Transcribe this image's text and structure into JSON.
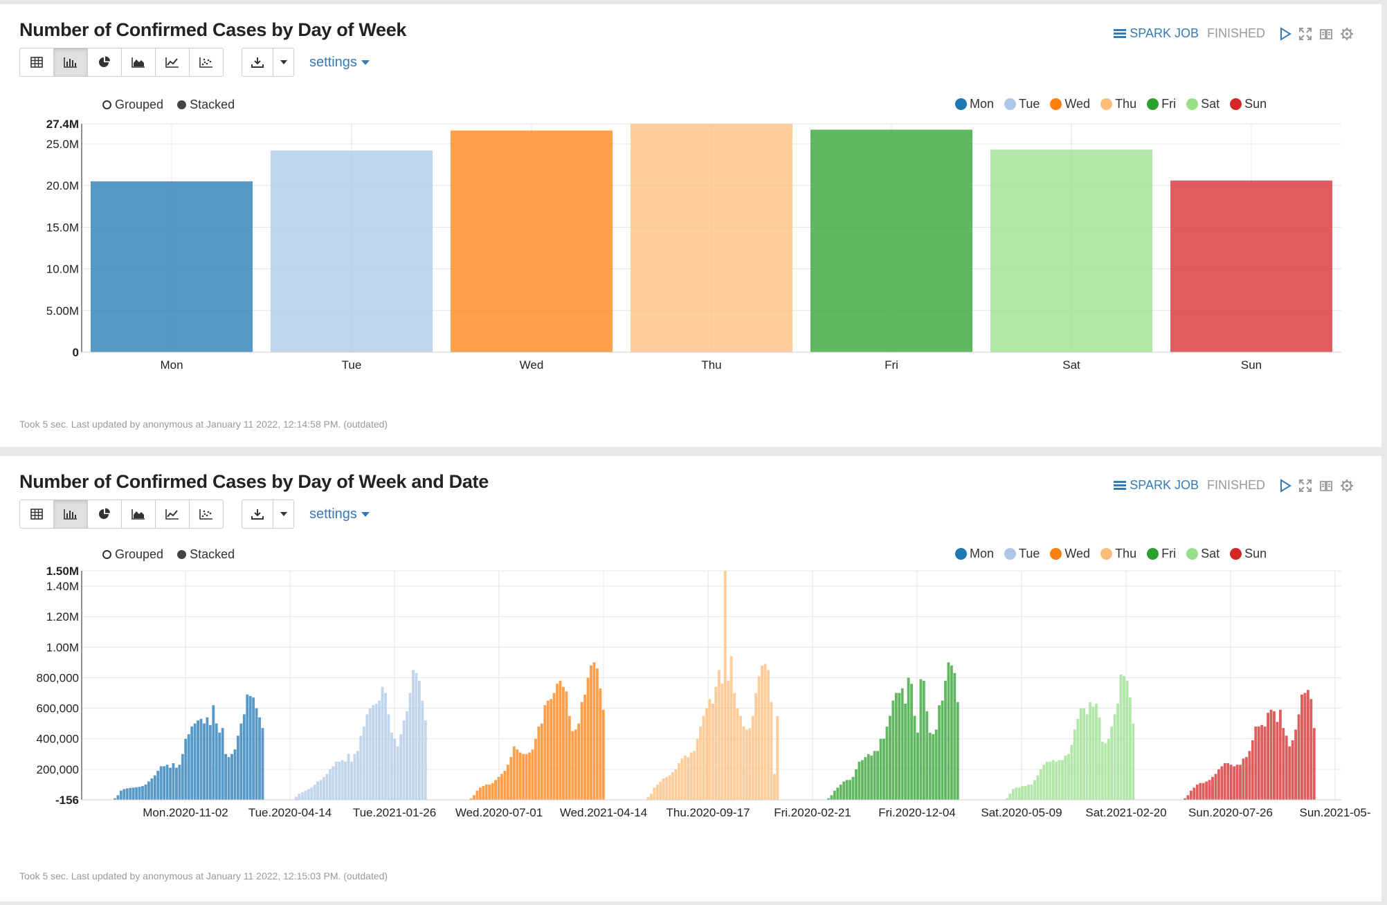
{
  "colors": {
    "Mon": "#1f77b4",
    "Tue": "#aec7e8",
    "Wed": "#ff7f0e",
    "Thu": "#ffbb78",
    "Fri": "#2ca02c",
    "Sat": "#98df8a",
    "Sun": "#d62728"
  },
  "toolbar": {
    "buttons": [
      "table-icon",
      "bar-chart-icon",
      "pie-chart-icon",
      "area-chart-icon",
      "line-chart-icon",
      "scatter-chart-icon"
    ],
    "settings_label": "settings"
  },
  "status": {
    "job_label": "SPARK JOB",
    "state": "FINISHED"
  },
  "mode": {
    "grouped": "Grouped",
    "stacked": "Stacked"
  },
  "legend": [
    "Mon",
    "Tue",
    "Wed",
    "Thu",
    "Fri",
    "Sat",
    "Sun"
  ],
  "paragraphs": [
    {
      "title": "Number of Confirmed Cases by Day of Week",
      "footer": "Took 5 sec. Last updated by anonymous at January 11 2022, 12:14:58 PM. (outdated)"
    },
    {
      "title": "Number of Confirmed Cases by Day of Week and Date",
      "footer": "Took 5 sec. Last updated by anonymous at January 11 2022, 12:15:03 PM. (outdated)"
    }
  ],
  "chart_data": [
    {
      "type": "bar",
      "title": "Number of Confirmed Cases by Day of Week",
      "categories": [
        "Mon",
        "Tue",
        "Wed",
        "Thu",
        "Fri",
        "Sat",
        "Sun"
      ],
      "values": [
        20500000,
        24200000,
        26600000,
        27400000,
        26700000,
        24300000,
        20600000
      ],
      "ylim": [
        0,
        27400000
      ],
      "yticks": [
        "0",
        "5.00M",
        "10.0M",
        "15.0M",
        "20.0M",
        "25.0M",
        "27.4M"
      ],
      "ytick_values": [
        0,
        5000000,
        10000000,
        15000000,
        20000000,
        25000000,
        27400000
      ],
      "grid": true,
      "legend_position": "top-right"
    },
    {
      "type": "bar",
      "title": "Number of Confirmed Cases by Day of Week and Date",
      "ylim": [
        -156,
        1500000
      ],
      "yticks": [
        "-156",
        "200,000",
        "400,000",
        "600,000",
        "800,000",
        "1.00M",
        "1.20M",
        "1.40M",
        "1.50M"
      ],
      "ytick_values": [
        -156,
        200000,
        400000,
        600000,
        800000,
        1000000,
        1200000,
        1400000,
        1500000
      ],
      "xtick_labels": [
        "Mon.2020-11-02",
        "Tue.2020-04-14",
        "Tue.2021-01-26",
        "Wed.2020-07-01",
        "Wed.2021-04-14",
        "Thu.2020-09-17",
        "Fri.2020-02-21",
        "Fri.2020-12-04",
        "Sat.2020-05-09",
        "Sat.2021-02-20",
        "Sun.2020-07-26",
        "Sun.2021-05-"
      ],
      "grid": true,
      "legend_position": "top-right",
      "series": [
        {
          "name": "Mon",
          "values": [
            0,
            0,
            0,
            0,
            0,
            0,
            0,
            0,
            0,
            10,
            30,
            60,
            70,
            75,
            78,
            80,
            82,
            85,
            90,
            100,
            120,
            140,
            160,
            190,
            220,
            220,
            230,
            210,
            240,
            210,
            230,
            300,
            400,
            430,
            480,
            500,
            520,
            530,
            500,
            540,
            490,
            620,
            500,
            440,
            470,
            300,
            280,
            300,
            330,
            420,
            500,
            560,
            690,
            680,
            670,
            600,
            540,
            470
          ]
        },
        {
          "name": "Tue",
          "values": [
            0,
            0,
            0,
            0,
            0,
            0,
            0,
            0,
            0,
            20,
            40,
            50,
            60,
            70,
            80,
            100,
            120,
            130,
            150,
            170,
            200,
            220,
            250,
            250,
            260,
            250,
            300,
            250,
            300,
            320,
            420,
            480,
            560,
            600,
            620,
            630,
            650,
            740,
            700,
            560,
            440,
            400,
            350,
            430,
            520,
            580,
            700,
            850,
            830,
            780,
            650,
            520
          ]
        },
        {
          "name": "Wed",
          "values": [
            0,
            0,
            0,
            0,
            0,
            0,
            0,
            0,
            10,
            30,
            60,
            80,
            90,
            100,
            100,
            110,
            130,
            150,
            170,
            190,
            230,
            280,
            350,
            330,
            310,
            300,
            300,
            310,
            330,
            400,
            480,
            500,
            620,
            650,
            660,
            700,
            760,
            780,
            740,
            710,
            550,
            450,
            460,
            500,
            640,
            690,
            800,
            880,
            900,
            860,
            730,
            590
          ]
        },
        {
          "name": "Thu",
          "values": [
            0,
            0,
            0,
            0,
            0,
            0,
            0,
            0,
            20,
            40,
            80,
            100,
            120,
            140,
            150,
            160,
            180,
            200,
            240,
            270,
            290,
            280,
            310,
            320,
            400,
            480,
            550,
            600,
            660,
            630,
            740,
            850,
            760,
            1500,
            780,
            940,
            700,
            600,
            550,
            480,
            460,
            470,
            550,
            700,
            810,
            880,
            890,
            850,
            640,
            170,
            550
          ]
        },
        {
          "name": "Fri",
          "values": [
            0,
            0,
            0,
            0,
            0,
            0,
            0,
            0,
            0,
            10,
            30,
            60,
            80,
            100,
            120,
            130,
            130,
            150,
            200,
            250,
            260,
            280,
            300,
            290,
            320,
            320,
            400,
            400,
            480,
            550,
            650,
            700,
            700,
            730,
            630,
            800,
            760,
            550,
            440,
            790,
            780,
            580,
            440,
            430,
            460,
            620,
            650,
            780,
            900,
            880,
            830,
            640
          ]
        },
        {
          "name": "Sat",
          "values": [
            0,
            0,
            0,
            0,
            0,
            0,
            0,
            0,
            0,
            10,
            40,
            70,
            80,
            80,
            90,
            90,
            100,
            100,
            130,
            160,
            200,
            230,
            250,
            250,
            260,
            250,
            260,
            260,
            290,
            300,
            360,
            460,
            530,
            600,
            600,
            560,
            640,
            610,
            630,
            540,
            380,
            370,
            400,
            480,
            560,
            630,
            820,
            810,
            780,
            670,
            500
          ]
        },
        {
          "name": "Sun",
          "values": [
            0,
            0,
            0,
            0,
            0,
            0,
            0,
            0,
            0,
            10,
            30,
            60,
            80,
            100,
            110,
            110,
            120,
            130,
            150,
            170,
            200,
            220,
            240,
            240,
            230,
            220,
            230,
            230,
            270,
            280,
            320,
            390,
            480,
            480,
            490,
            480,
            570,
            590,
            580,
            510,
            590,
            470,
            420,
            350,
            390,
            460,
            560,
            690,
            700,
            720,
            660,
            470
          ]
        }
      ]
    }
  ]
}
